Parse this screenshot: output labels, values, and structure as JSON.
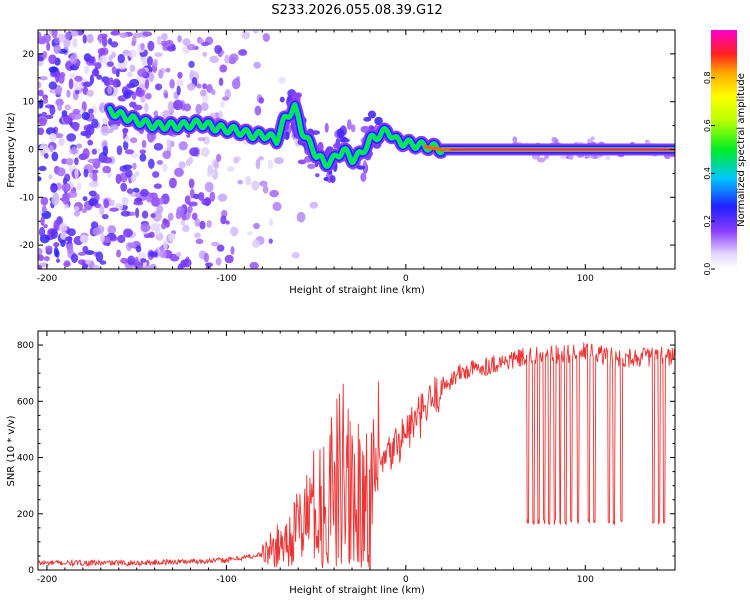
{
  "title": "S233.2026.055.08.39.G12",
  "chart_data": [
    {
      "type": "heatmap",
      "title": "S233.2026.055.08.39.G12",
      "xlabel": "Height of straight line (km)",
      "ylabel": "Frequency (Hz)",
      "xlim": [
        -205,
        150
      ],
      "ylim": [
        -25,
        25
      ],
      "xticks": [
        -200,
        -100,
        0,
        100
      ],
      "yticks": [
        -20,
        -10,
        0,
        10,
        20
      ],
      "colorbar": {
        "label": "Normalized spectral amplitude",
        "range": [
          0.0,
          1.0
        ],
        "ticks": [
          0.0,
          0.2,
          0.4,
          0.6,
          0.8
        ]
      },
      "ridge": {
        "x": [
          -165,
          -150,
          -140,
          -125,
          -115,
          -105,
          -95,
          -85,
          -78,
          -72,
          -68,
          -62,
          -58,
          -55,
          -50,
          -45,
          -40,
          -35,
          -30,
          -25,
          -20,
          -15,
          -10,
          -6,
          -2,
          5,
          15,
          20,
          30,
          60,
          100,
          150
        ],
        "y": [
          8,
          6,
          5,
          5,
          5.5,
          4.5,
          4,
          3,
          3,
          2,
          6,
          9,
          4,
          2,
          -1,
          -3,
          -2,
          0,
          -2,
          -1,
          2,
          3,
          4,
          2,
          1.5,
          1,
          0.5,
          0,
          0,
          0,
          0,
          0
        ]
      }
    },
    {
      "type": "line",
      "xlabel": "Height of straight line (km)",
      "ylabel": "SNR (10 * v/v)",
      "xlim": [
        -205,
        150
      ],
      "ylim": [
        0,
        850
      ],
      "xticks": [
        -200,
        -100,
        0,
        100
      ],
      "yticks": [
        0,
        200,
        400,
        600,
        800
      ],
      "series": [
        {
          "name": "SNR",
          "color": "#ee3333",
          "trend_x": [
            -205,
            -150,
            -100,
            -80,
            -65,
            -55,
            -45,
            -35,
            -25,
            -20,
            -10,
            0,
            10,
            20,
            30,
            50,
            70,
            100,
            120,
            150
          ],
          "trend_y": [
            25,
            25,
            35,
            55,
            110,
            200,
            290,
            360,
            330,
            320,
            400,
            490,
            560,
            650,
            700,
            735,
            760,
            775,
            755,
            760
          ],
          "dropouts_x": [
            68,
            71,
            74,
            77,
            80,
            83,
            86,
            89,
            92,
            96,
            102,
            105,
            113,
            116,
            120,
            138,
            141,
            144
          ],
          "dropout_level": 170
        }
      ]
    }
  ]
}
